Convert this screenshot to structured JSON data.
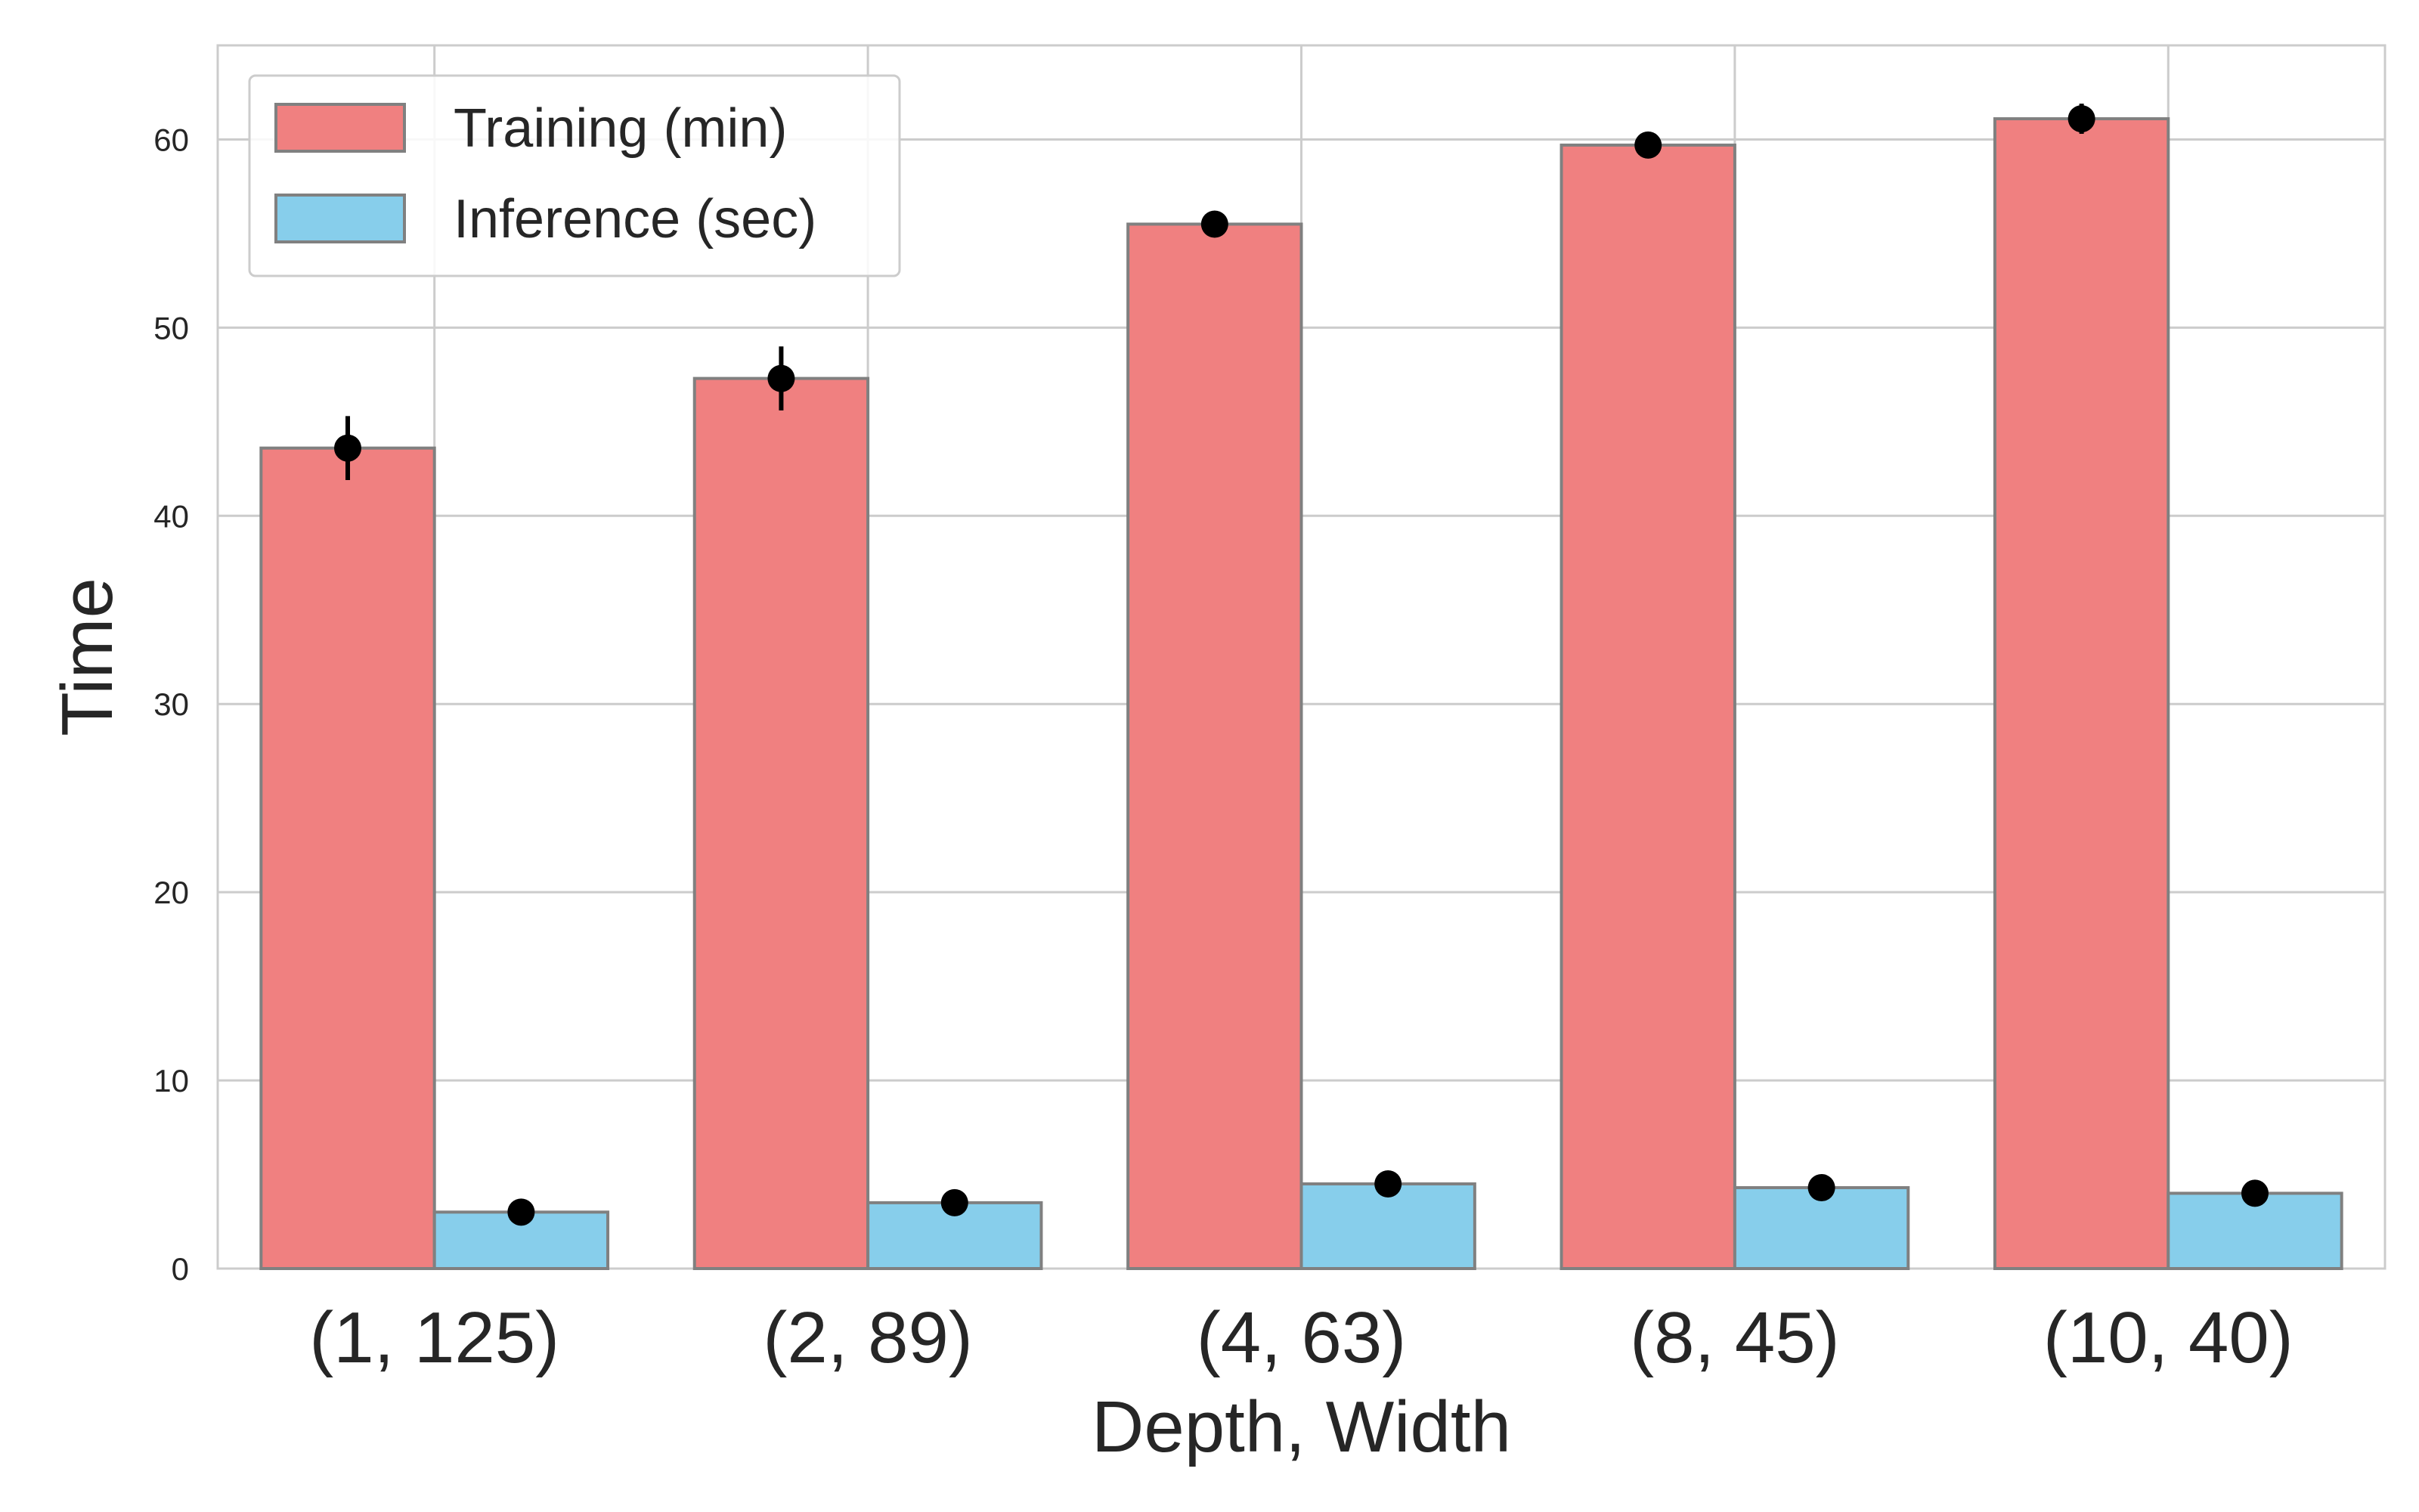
{
  "chart_data": {
    "type": "bar",
    "title": "",
    "xlabel": "Depth, Width",
    "ylabel": "Time",
    "ylim": [
      0,
      65
    ],
    "yticks": [
      0,
      10,
      20,
      30,
      40,
      50,
      60
    ],
    "grid": true,
    "legend_position": "top-left",
    "categories": [
      "(1, 125)",
      "(2, 89)",
      "(4, 63)",
      "(8, 45)",
      "(10, 40)"
    ],
    "series": [
      {
        "name": "Training (min)",
        "color": "#f08080",
        "values": [
          43.6,
          47.3,
          55.5,
          59.7,
          61.1
        ],
        "errors": [
          1.7,
          1.7,
          0.2,
          0.3,
          0.8
        ]
      },
      {
        "name": "Inference (sec)",
        "color": "#87ceeb",
        "values": [
          3.0,
          3.5,
          4.5,
          4.3,
          4.0
        ],
        "errors": [
          0.1,
          0.1,
          0.1,
          0.1,
          0.1
        ]
      }
    ]
  }
}
